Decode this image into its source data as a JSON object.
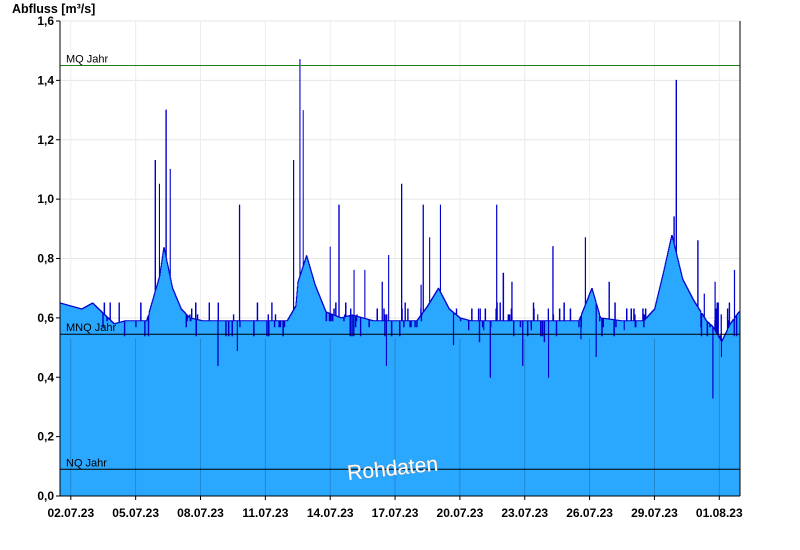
{
  "chart_data": {
    "type": "area",
    "ylabel": "Abfluss [m³/s]",
    "ylim": [
      0,
      1.6
    ],
    "yticks": [
      "0,0",
      "0,2",
      "0,4",
      "0,6",
      "0,8",
      "1,0",
      "1,2",
      "1,4",
      "1,6"
    ],
    "xlim": [
      "2023-07-01T12:00",
      "2023-08-01T23:00"
    ],
    "xticks": [
      "02.07.23",
      "05.07.23",
      "08.07.23",
      "11.07.23",
      "14.07.23",
      "17.07.23",
      "20.07.23",
      "23.07.23",
      "26.07.23",
      "29.07.23",
      "01.08.23"
    ],
    "grid": true,
    "reference_lines": [
      {
        "label": "MQ Jahr",
        "value": 1.45,
        "color": "#208020"
      },
      {
        "label": "MNQ Jahr",
        "value": 0.545,
        "color": "#000000"
      },
      {
        "label": "NQ Jahr",
        "value": 0.09,
        "color": "#000000"
      }
    ],
    "series": [
      {
        "fill_color": "#2aa7ff",
        "line_color": "#0000cc",
        "base_value": 0.59,
        "baseline": [
          [
            0.0,
            0.65
          ],
          [
            1.0,
            0.63
          ],
          [
            1.5,
            0.65
          ],
          [
            2.5,
            0.58
          ],
          [
            3.0,
            0.59
          ],
          [
            4.0,
            0.59
          ],
          [
            4.6,
            0.74
          ],
          [
            4.8,
            0.84
          ],
          [
            5.2,
            0.7
          ],
          [
            5.6,
            0.63
          ],
          [
            6.0,
            0.6
          ],
          [
            6.6,
            0.59
          ],
          [
            10.5,
            0.59
          ],
          [
            10.9,
            0.64
          ],
          [
            11.0,
            0.72
          ],
          [
            11.4,
            0.81
          ],
          [
            11.8,
            0.71
          ],
          [
            12.3,
            0.62
          ],
          [
            13.0,
            0.6
          ],
          [
            13.5,
            0.61
          ],
          [
            14.5,
            0.59
          ],
          [
            16.5,
            0.59
          ],
          [
            17.0,
            0.64
          ],
          [
            17.5,
            0.7
          ],
          [
            18.0,
            0.63
          ],
          [
            18.5,
            0.6
          ],
          [
            19.0,
            0.59
          ],
          [
            24.0,
            0.59
          ],
          [
            24.6,
            0.7
          ],
          [
            25.0,
            0.6
          ],
          [
            26.0,
            0.59
          ],
          [
            27.0,
            0.59
          ],
          [
            27.5,
            0.63
          ],
          [
            27.9,
            0.75
          ],
          [
            28.3,
            0.88
          ],
          [
            28.8,
            0.73
          ],
          [
            29.3,
            0.66
          ],
          [
            29.9,
            0.59
          ],
          [
            30.2,
            0.57
          ],
          [
            30.6,
            0.52
          ],
          [
            31.0,
            0.58
          ],
          [
            31.4,
            0.62
          ]
        ],
        "spikes": [
          [
            4.4,
            1.13
          ],
          [
            4.6,
            1.05
          ],
          [
            4.9,
            1.3
          ],
          [
            5.1,
            1.1
          ],
          [
            7.3,
            0.44
          ],
          [
            8.3,
            0.98
          ],
          [
            8.2,
            0.49
          ],
          [
            10.8,
            1.13
          ],
          [
            11.1,
            1.47
          ],
          [
            11.25,
            1.3
          ],
          [
            12.5,
            0.84
          ],
          [
            12.9,
            0.98
          ],
          [
            13.6,
            0.76
          ],
          [
            14.1,
            0.76
          ],
          [
            14.9,
            0.72
          ],
          [
            15.2,
            0.81
          ],
          [
            15.1,
            0.44
          ],
          [
            15.8,
            1.05
          ],
          [
            16.7,
            0.71
          ],
          [
            16.8,
            0.98
          ],
          [
            17.1,
            0.87
          ],
          [
            17.6,
            0.98
          ],
          [
            18.2,
            0.51
          ],
          [
            18.9,
            0.56
          ],
          [
            19.4,
            0.52
          ],
          [
            19.6,
            0.56
          ],
          [
            19.9,
            0.4
          ],
          [
            20.2,
            0.98
          ],
          [
            20.5,
            0.75
          ],
          [
            20.9,
            0.72
          ],
          [
            21.4,
            0.44
          ],
          [
            21.8,
            0.56
          ],
          [
            22.1,
            0.61
          ],
          [
            22.4,
            0.52
          ],
          [
            22.6,
            0.4
          ],
          [
            22.8,
            0.84
          ],
          [
            24.1,
            0.53
          ],
          [
            24.3,
            0.87
          ],
          [
            24.8,
            0.47
          ],
          [
            25.4,
            0.72
          ],
          [
            26.1,
            0.56
          ],
          [
            28.5,
            1.4
          ],
          [
            28.4,
            0.94
          ],
          [
            29.5,
            0.86
          ],
          [
            29.8,
            0.68
          ],
          [
            30.2,
            0.33
          ],
          [
            30.3,
            0.72
          ],
          [
            30.6,
            0.47
          ],
          [
            30.9,
            0.59
          ],
          [
            31.2,
            0.76
          ]
        ]
      }
    ],
    "annotation": "Rohdaten"
  }
}
